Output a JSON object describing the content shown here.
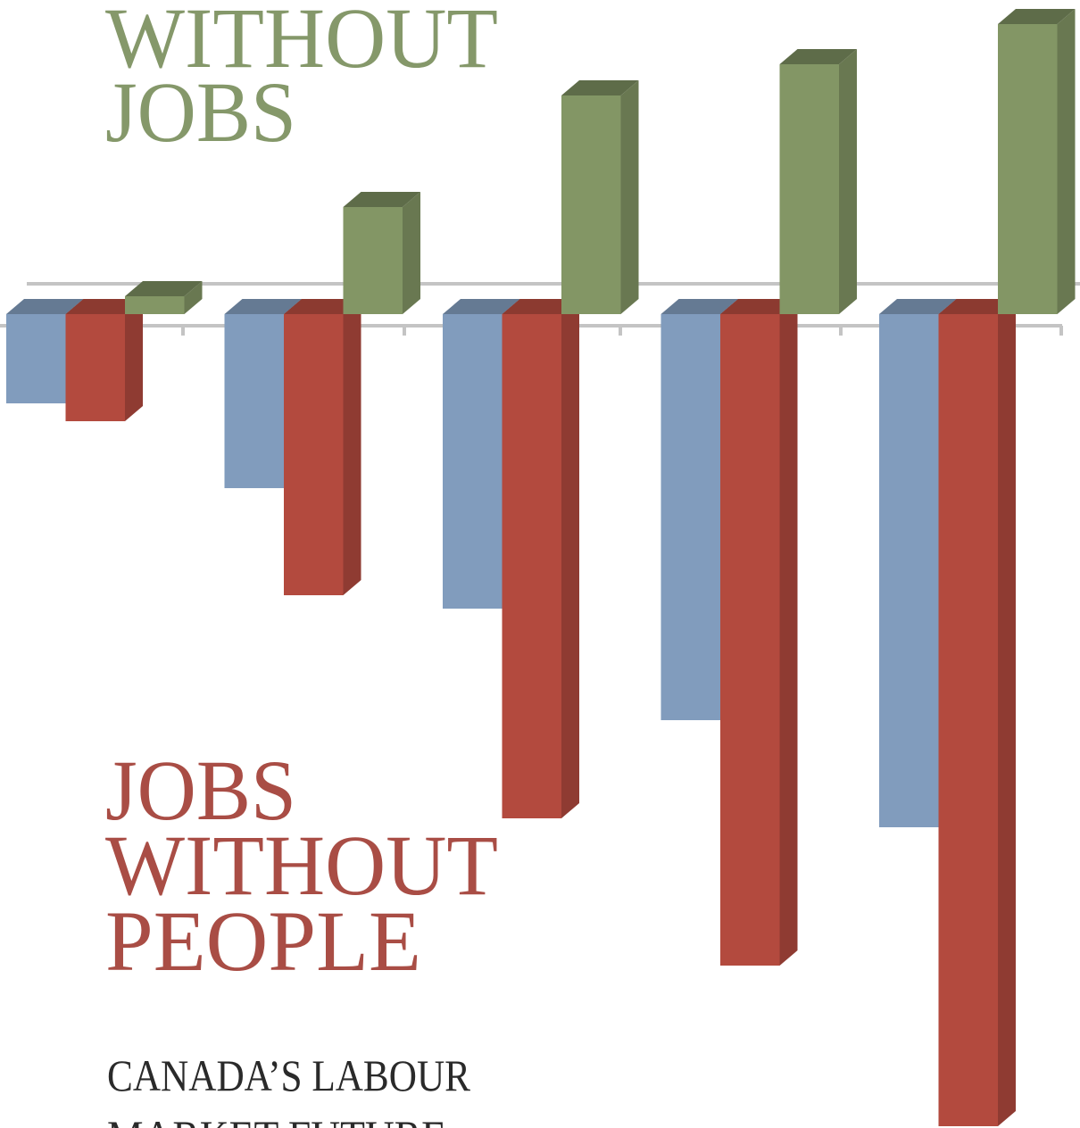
{
  "chart_data": {
    "type": "bar3d",
    "title_lines": [
      "WITHOUT",
      "JOBS"
    ],
    "subtitle_lines": [
      "JOBS",
      "WITHOUT",
      "PEOPLE"
    ],
    "footer_lines": [
      "CANADA’S LABOUR",
      "MARKET FUTURE"
    ],
    "categories": [
      null,
      null,
      null,
      null,
      null
    ],
    "series": [
      {
        "color": "#819cbd",
        "values": [
          -10,
          -19.5,
          -33,
          -45.5,
          -57.5
        ]
      },
      {
        "color": "#b34a3e",
        "values": [
          -12,
          -31.5,
          -56.5,
          -73,
          -91
        ]
      },
      {
        "color": "#839665",
        "values": [
          2,
          12,
          24.5,
          28,
          32.5
        ]
      }
    ],
    "ylim": [
      -91.2,
      35.2
    ]
  }
}
